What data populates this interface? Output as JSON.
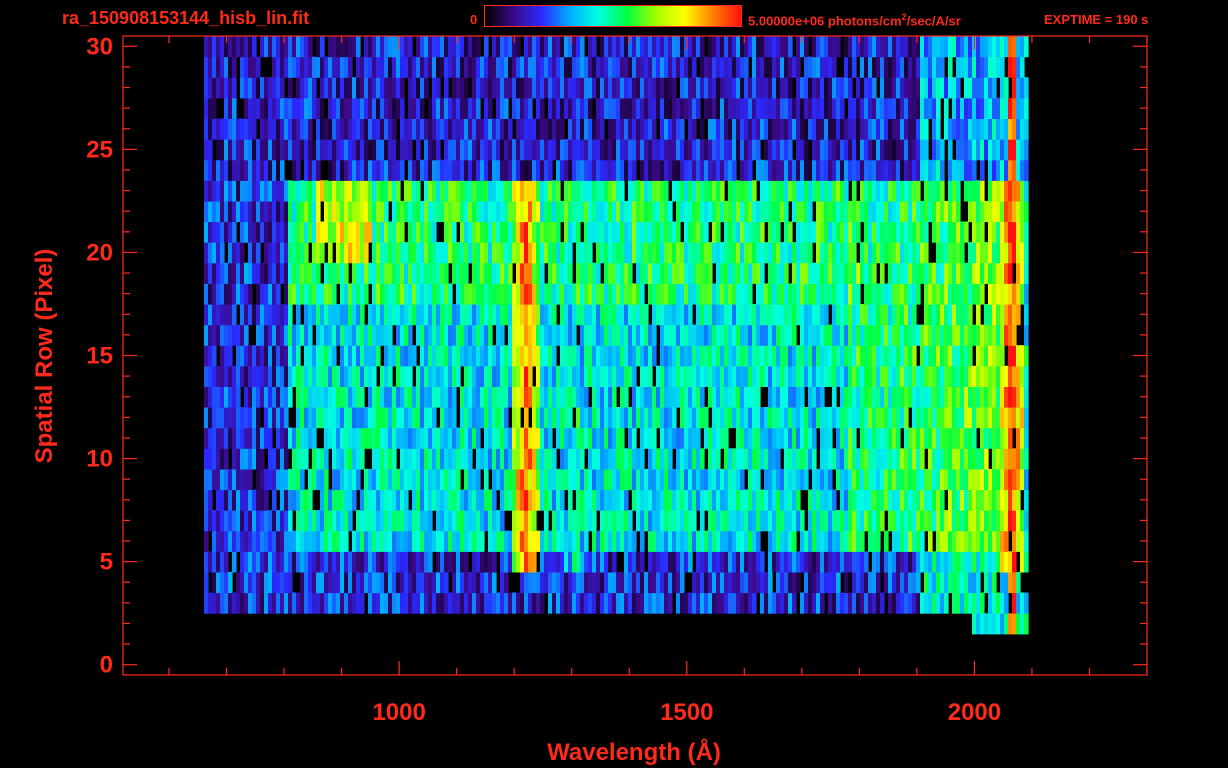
{
  "header": {
    "filename": "ra_150908153144_hisb_lin.fit",
    "colorbar_min": "0",
    "colorbar_max_prefix": "5.00000e+06 photons/cm",
    "colorbar_max_exp": "2",
    "colorbar_max_suffix": "/sec/A/sr",
    "exptime": "EXPTIME = 190 s"
  },
  "colors": {
    "axis": "#ff2a1a",
    "background": "#000000",
    "colormap": [
      "#000000",
      "#3a0a8a",
      "#2a2aff",
      "#00b0ff",
      "#00ffe0",
      "#00ff40",
      "#a0ff00",
      "#ffff00",
      "#ff8000",
      "#ff1010"
    ]
  },
  "chart_data": {
    "type": "heatmap",
    "xlabel": "Wavelength (Å)",
    "ylabel": "Spatial Row (Pixel)",
    "xlim": [
      520,
      2300
    ],
    "ylim": [
      -0.5,
      30.5
    ],
    "xticks": [
      1000,
      1500,
      2000
    ],
    "yticks": [
      0,
      5,
      10,
      15,
      20,
      25,
      30
    ],
    "x_minor_step": 100,
    "y_minor_step": 1,
    "colorbar_range": [
      0,
      5000000
    ],
    "colorbar_units": "photons/cm^2/sec/A/sr",
    "bright_region": {
      "x_start": 800,
      "x_end": 2060,
      "row_start": 6,
      "row_end": 23
    },
    "emission_lines": [
      {
        "x": 1216,
        "peak_level": 0.92
      },
      {
        "x": 1304,
        "peak_level": 0.52
      },
      {
        "x": 2060,
        "peak_level": 0.95
      }
    ]
  }
}
